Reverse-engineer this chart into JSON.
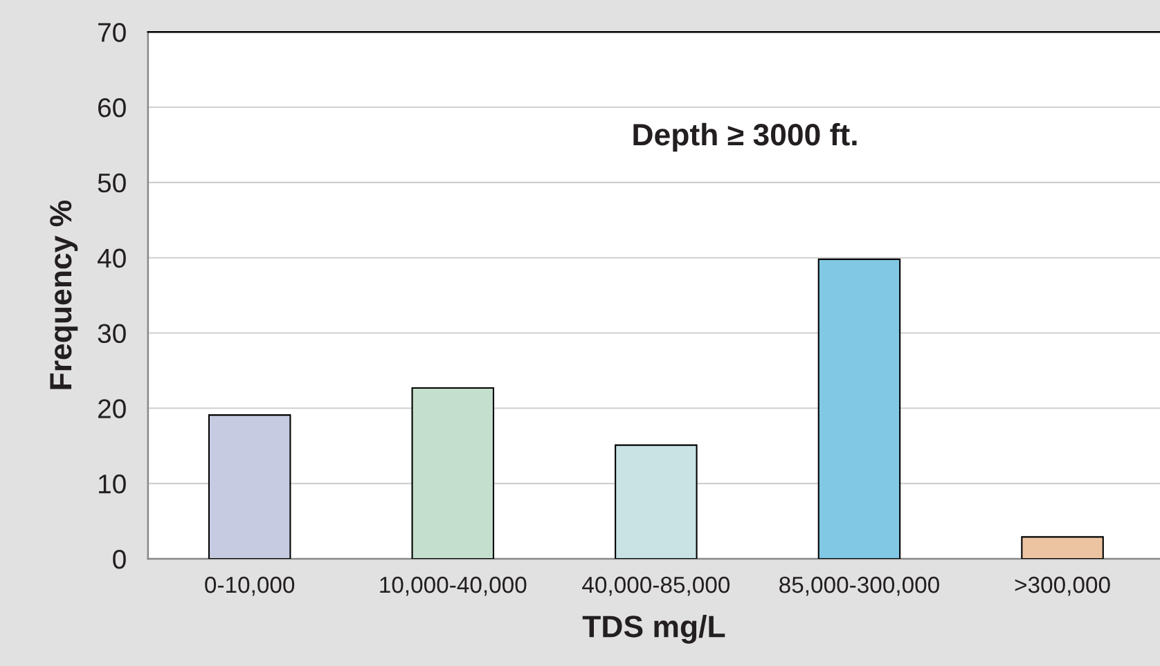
{
  "chart_data": {
    "type": "bar",
    "xlabel": "TDS mg/L",
    "ylabel": "Frequency %",
    "annotations": [
      "Depth ≥ 3000 ft."
    ],
    "categories": [
      "0-10,000",
      "10,000-40,000",
      "40,000-85,000",
      "85,000-300,000",
      ">300,000"
    ],
    "values": [
      19.1,
      22.7,
      15.1,
      39.8,
      2.9
    ],
    "colors": [
      "#c1c8e6",
      "#c0e3cb",
      "#c5e6e8",
      "#70cff4",
      "#f9c396"
    ],
    "ylim": [
      0,
      70
    ],
    "yticks": [
      0,
      10,
      20,
      30,
      40,
      50,
      60,
      70
    ],
    "grid": "y"
  }
}
